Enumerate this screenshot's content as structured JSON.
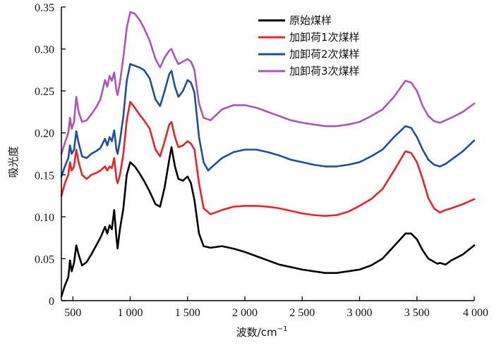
{
  "chart_data": {
    "type": "line",
    "xlabel": "波数/cm",
    "xlabel_sup": "−1",
    "ylabel": "吸光度",
    "xlim": [
      400,
      4000
    ],
    "ylim": [
      0,
      0.35
    ],
    "x_ticks": [
      500,
      1000,
      1500,
      2000,
      2500,
      3000,
      3500,
      4000
    ],
    "x_tick_labels": [
      "500",
      "1 000",
      "1 500",
      "2 000",
      "2 500",
      "3 000",
      "3 500",
      "4 000"
    ],
    "y_ticks": [
      0,
      0.05,
      0.1,
      0.15,
      0.2,
      0.25,
      0.3,
      0.35
    ],
    "y_tick_labels": [
      "0",
      "0.05",
      "0.10",
      "0.15",
      "0.20",
      "0.25",
      "0.30",
      "0.35"
    ],
    "grid": false,
    "legend_position": "top-right",
    "series": [
      {
        "name": "原始煤样",
        "color": "#000000",
        "points": [
          [
            400,
            0.005
          ],
          [
            430,
            0.018
          ],
          [
            460,
            0.028
          ],
          [
            475,
            0.048
          ],
          [
            490,
            0.035
          ],
          [
            510,
            0.045
          ],
          [
            530,
            0.066
          ],
          [
            550,
            0.055
          ],
          [
            580,
            0.042
          ],
          [
            620,
            0.046
          ],
          [
            660,
            0.055
          ],
          [
            700,
            0.065
          ],
          [
            740,
            0.075
          ],
          [
            780,
            0.088
          ],
          [
            800,
            0.08
          ],
          [
            820,
            0.09
          ],
          [
            840,
            0.085
          ],
          [
            860,
            0.108
          ],
          [
            880,
            0.075
          ],
          [
            890,
            0.062
          ],
          [
            910,
            0.085
          ],
          [
            940,
            0.11
          ],
          [
            970,
            0.15
          ],
          [
            1000,
            0.165
          ],
          [
            1040,
            0.16
          ],
          [
            1080,
            0.152
          ],
          [
            1120,
            0.143
          ],
          [
            1170,
            0.13
          ],
          [
            1220,
            0.115
          ],
          [
            1260,
            0.112
          ],
          [
            1300,
            0.135
          ],
          [
            1340,
            0.168
          ],
          [
            1360,
            0.183
          ],
          [
            1390,
            0.16
          ],
          [
            1420,
            0.145
          ],
          [
            1460,
            0.143
          ],
          [
            1500,
            0.148
          ],
          [
            1530,
            0.14
          ],
          [
            1560,
            0.12
          ],
          [
            1600,
            0.08
          ],
          [
            1640,
            0.065
          ],
          [
            1700,
            0.063
          ],
          [
            1800,
            0.065
          ],
          [
            1900,
            0.062
          ],
          [
            2000,
            0.058
          ],
          [
            2100,
            0.053
          ],
          [
            2200,
            0.048
          ],
          [
            2300,
            0.043
          ],
          [
            2400,
            0.04
          ],
          [
            2500,
            0.037
          ],
          [
            2600,
            0.035
          ],
          [
            2700,
            0.033
          ],
          [
            2800,
            0.033
          ],
          [
            2900,
            0.035
          ],
          [
            3000,
            0.037
          ],
          [
            3100,
            0.042
          ],
          [
            3200,
            0.05
          ],
          [
            3300,
            0.065
          ],
          [
            3400,
            0.08
          ],
          [
            3450,
            0.08
          ],
          [
            3500,
            0.073
          ],
          [
            3550,
            0.06
          ],
          [
            3600,
            0.05
          ],
          [
            3680,
            0.044
          ],
          [
            3700,
            0.045
          ],
          [
            3750,
            0.043
          ],
          [
            3800,
            0.048
          ],
          [
            3900,
            0.055
          ],
          [
            4000,
            0.066
          ]
        ]
      },
      {
        "name": "加卸荷1次煤样",
        "color": "#e8232a",
        "points": [
          [
            400,
            0.125
          ],
          [
            430,
            0.14
          ],
          [
            460,
            0.15
          ],
          [
            475,
            0.165
          ],
          [
            490,
            0.155
          ],
          [
            510,
            0.16
          ],
          [
            530,
            0.18
          ],
          [
            550,
            0.165
          ],
          [
            580,
            0.15
          ],
          [
            620,
            0.145
          ],
          [
            660,
            0.15
          ],
          [
            700,
            0.152
          ],
          [
            740,
            0.155
          ],
          [
            780,
            0.16
          ],
          [
            800,
            0.155
          ],
          [
            820,
            0.16
          ],
          [
            840,
            0.158
          ],
          [
            860,
            0.17
          ],
          [
            880,
            0.145
          ],
          [
            890,
            0.14
          ],
          [
            910,
            0.15
          ],
          [
            940,
            0.175
          ],
          [
            970,
            0.215
          ],
          [
            1000,
            0.237
          ],
          [
            1040,
            0.23
          ],
          [
            1080,
            0.222
          ],
          [
            1120,
            0.215
          ],
          [
            1170,
            0.205
          ],
          [
            1220,
            0.18
          ],
          [
            1260,
            0.172
          ],
          [
            1300,
            0.19
          ],
          [
            1340,
            0.21
          ],
          [
            1360,
            0.213
          ],
          [
            1390,
            0.195
          ],
          [
            1420,
            0.183
          ],
          [
            1460,
            0.185
          ],
          [
            1500,
            0.19
          ],
          [
            1530,
            0.187
          ],
          [
            1560,
            0.18
          ],
          [
            1600,
            0.14
          ],
          [
            1640,
            0.11
          ],
          [
            1700,
            0.103
          ],
          [
            1800,
            0.108
          ],
          [
            1900,
            0.112
          ],
          [
            2000,
            0.113
          ],
          [
            2100,
            0.113
          ],
          [
            2200,
            0.112
          ],
          [
            2300,
            0.11
          ],
          [
            2400,
            0.107
          ],
          [
            2500,
            0.104
          ],
          [
            2600,
            0.102
          ],
          [
            2700,
            0.101
          ],
          [
            2800,
            0.102
          ],
          [
            2900,
            0.106
          ],
          [
            3000,
            0.113
          ],
          [
            3100,
            0.121
          ],
          [
            3200,
            0.133
          ],
          [
            3300,
            0.155
          ],
          [
            3400,
            0.178
          ],
          [
            3450,
            0.176
          ],
          [
            3500,
            0.165
          ],
          [
            3550,
            0.145
          ],
          [
            3600,
            0.122
          ],
          [
            3650,
            0.11
          ],
          [
            3700,
            0.105
          ],
          [
            3750,
            0.108
          ],
          [
            3800,
            0.11
          ],
          [
            3900,
            0.115
          ],
          [
            4000,
            0.121
          ]
        ]
      },
      {
        "name": "加卸荷2次煤样",
        "color": "#1f4e9c",
        "points": [
          [
            400,
            0.148
          ],
          [
            430,
            0.16
          ],
          [
            460,
            0.17
          ],
          [
            475,
            0.185
          ],
          [
            490,
            0.175
          ],
          [
            510,
            0.18
          ],
          [
            530,
            0.202
          ],
          [
            550,
            0.188
          ],
          [
            580,
            0.172
          ],
          [
            620,
            0.17
          ],
          [
            660,
            0.175
          ],
          [
            700,
            0.178
          ],
          [
            740,
            0.182
          ],
          [
            780,
            0.193
          ],
          [
            800,
            0.185
          ],
          [
            820,
            0.195
          ],
          [
            840,
            0.19
          ],
          [
            860,
            0.203
          ],
          [
            880,
            0.18
          ],
          [
            890,
            0.175
          ],
          [
            910,
            0.19
          ],
          [
            940,
            0.22
          ],
          [
            970,
            0.262
          ],
          [
            1000,
            0.282
          ],
          [
            1040,
            0.28
          ],
          [
            1080,
            0.278
          ],
          [
            1120,
            0.275
          ],
          [
            1170,
            0.265
          ],
          [
            1220,
            0.24
          ],
          [
            1260,
            0.232
          ],
          [
            1300,
            0.25
          ],
          [
            1340,
            0.27
          ],
          [
            1360,
            0.274
          ],
          [
            1390,
            0.255
          ],
          [
            1420,
            0.243
          ],
          [
            1460,
            0.25
          ],
          [
            1500,
            0.263
          ],
          [
            1530,
            0.26
          ],
          [
            1560,
            0.248
          ],
          [
            1600,
            0.195
          ],
          [
            1640,
            0.165
          ],
          [
            1680,
            0.155
          ],
          [
            1700,
            0.158
          ],
          [
            1800,
            0.17
          ],
          [
            1900,
            0.177
          ],
          [
            2000,
            0.18
          ],
          [
            2100,
            0.18
          ],
          [
            2200,
            0.177
          ],
          [
            2300,
            0.173
          ],
          [
            2400,
            0.168
          ],
          [
            2500,
            0.165
          ],
          [
            2600,
            0.162
          ],
          [
            2700,
            0.16
          ],
          [
            2800,
            0.16
          ],
          [
            2900,
            0.162
          ],
          [
            3000,
            0.165
          ],
          [
            3100,
            0.172
          ],
          [
            3200,
            0.18
          ],
          [
            3300,
            0.195
          ],
          [
            3400,
            0.208
          ],
          [
            3450,
            0.206
          ],
          [
            3500,
            0.195
          ],
          [
            3550,
            0.18
          ],
          [
            3600,
            0.168
          ],
          [
            3650,
            0.162
          ],
          [
            3700,
            0.16
          ],
          [
            3750,
            0.163
          ],
          [
            3800,
            0.168
          ],
          [
            3900,
            0.178
          ],
          [
            4000,
            0.191
          ]
        ]
      },
      {
        "name": "加卸荷3次煤样",
        "color": "#a857b5",
        "points": [
          [
            400,
            0.175
          ],
          [
            430,
            0.188
          ],
          [
            460,
            0.2
          ],
          [
            475,
            0.218
          ],
          [
            490,
            0.205
          ],
          [
            510,
            0.213
          ],
          [
            530,
            0.243
          ],
          [
            550,
            0.225
          ],
          [
            580,
            0.213
          ],
          [
            620,
            0.215
          ],
          [
            660,
            0.222
          ],
          [
            700,
            0.23
          ],
          [
            740,
            0.24
          ],
          [
            780,
            0.263
          ],
          [
            800,
            0.255
          ],
          [
            820,
            0.268
          ],
          [
            840,
            0.262
          ],
          [
            860,
            0.272
          ],
          [
            880,
            0.25
          ],
          [
            890,
            0.245
          ],
          [
            910,
            0.26
          ],
          [
            940,
            0.29
          ],
          [
            970,
            0.325
          ],
          [
            1000,
            0.344
          ],
          [
            1040,
            0.342
          ],
          [
            1080,
            0.335
          ],
          [
            1120,
            0.325
          ],
          [
            1170,
            0.31
          ],
          [
            1220,
            0.288
          ],
          [
            1260,
            0.278
          ],
          [
            1300,
            0.29
          ],
          [
            1340,
            0.298
          ],
          [
            1360,
            0.3
          ],
          [
            1390,
            0.29
          ],
          [
            1420,
            0.282
          ],
          [
            1460,
            0.285
          ],
          [
            1500,
            0.288
          ],
          [
            1530,
            0.285
          ],
          [
            1560,
            0.275
          ],
          [
            1600,
            0.235
          ],
          [
            1640,
            0.218
          ],
          [
            1700,
            0.215
          ],
          [
            1800,
            0.228
          ],
          [
            1900,
            0.233
          ],
          [
            2000,
            0.233
          ],
          [
            2100,
            0.23
          ],
          [
            2200,
            0.225
          ],
          [
            2300,
            0.22
          ],
          [
            2400,
            0.215
          ],
          [
            2500,
            0.212
          ],
          [
            2600,
            0.21
          ],
          [
            2700,
            0.208
          ],
          [
            2800,
            0.208
          ],
          [
            2900,
            0.21
          ],
          [
            3000,
            0.213
          ],
          [
            3100,
            0.22
          ],
          [
            3200,
            0.228
          ],
          [
            3300,
            0.243
          ],
          [
            3400,
            0.262
          ],
          [
            3450,
            0.26
          ],
          [
            3500,
            0.25
          ],
          [
            3550,
            0.232
          ],
          [
            3600,
            0.22
          ],
          [
            3650,
            0.214
          ],
          [
            3700,
            0.212
          ],
          [
            3750,
            0.215
          ],
          [
            3800,
            0.218
          ],
          [
            3900,
            0.225
          ],
          [
            4000,
            0.235
          ]
        ]
      }
    ]
  }
}
